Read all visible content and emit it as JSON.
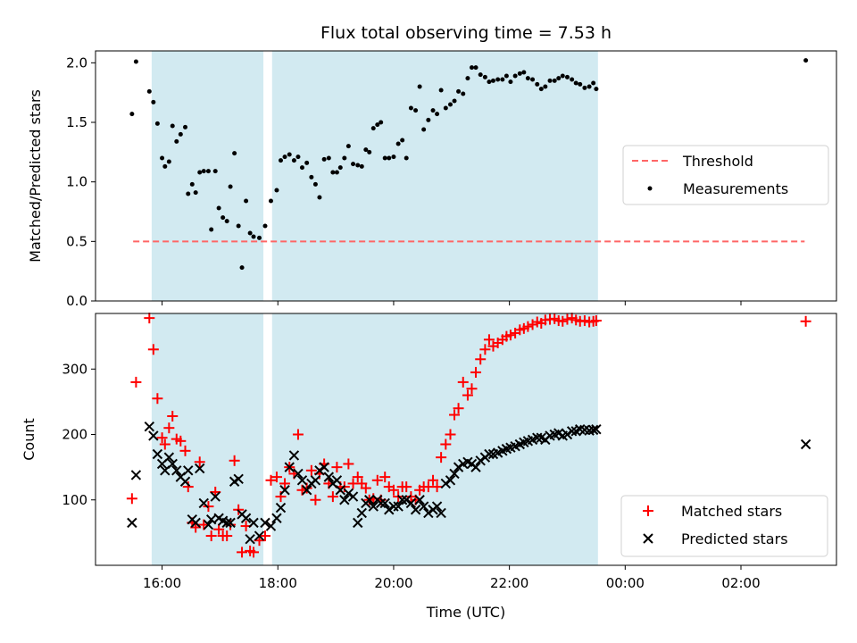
{
  "chart_data": {
    "title": "Flux total observing time = 7.53 h",
    "xlabel": "Time (UTC)",
    "x_ticks": [
      "16:00",
      "18:00",
      "20:00",
      "22:00",
      "00:00",
      "02:00"
    ],
    "x_range_hours": [
      14.85,
      27.65
    ],
    "shaded_spans_hours": [
      [
        15.82,
        17.75
      ],
      [
        17.9,
        23.53
      ]
    ],
    "shade_color": "#add8e6",
    "panels": [
      {
        "type": "scatter",
        "ylabel": "Matched/Predicted stars",
        "ylim": [
          0,
          2.1
        ],
        "y_ticks": [
          "0.0",
          "0.5",
          "1.0",
          "1.5",
          "2.0"
        ],
        "legend_position": "center-right",
        "threshold": {
          "name": "Threshold",
          "value": 0.5,
          "x_range": [
            15.5,
            27.1
          ],
          "color": "#ff6666",
          "style": "dashed"
        },
        "series": [
          {
            "name": "Measurements",
            "color": "#000000",
            "marker": "dot",
            "x": [
              15.48,
              15.55,
              15.78,
              15.85,
              15.92,
              16.0,
              16.05,
              16.12,
              16.18,
              16.25,
              16.32,
              16.4,
              16.45,
              16.52,
              16.58,
              16.65,
              16.72,
              16.8,
              16.85,
              16.92,
              16.98,
              17.05,
              17.12,
              17.18,
              17.25,
              17.32,
              17.38,
              17.45,
              17.52,
              17.58,
              17.68,
              17.78,
              17.88,
              17.98,
              18.05,
              18.12,
              18.2,
              18.28,
              18.35,
              18.42,
              18.5,
              18.58,
              18.65,
              18.72,
              18.8,
              18.88,
              18.95,
              19.02,
              19.08,
              19.15,
              19.22,
              19.3,
              19.38,
              19.45,
              19.52,
              19.58,
              19.65,
              19.72,
              19.78,
              19.85,
              19.92,
              20.0,
              20.08,
              20.15,
              20.22,
              20.3,
              20.38,
              20.45,
              20.52,
              20.6,
              20.68,
              20.75,
              20.82,
              20.9,
              20.98,
              21.05,
              21.12,
              21.2,
              21.28,
              21.35,
              21.42,
              21.5,
              21.58,
              21.65,
              21.72,
              21.8,
              21.88,
              21.95,
              22.02,
              22.1,
              22.18,
              22.25,
              22.32,
              22.4,
              22.48,
              22.55,
              22.62,
              22.7,
              22.78,
              22.85,
              22.92,
              23.0,
              23.08,
              23.15,
              23.22,
              23.3,
              23.38,
              23.45,
              23.5,
              27.12
            ],
            "y": [
              1.57,
              2.01,
              1.76,
              1.67,
              1.49,
              1.2,
              1.13,
              1.17,
              1.47,
              1.34,
              1.4,
              1.46,
              0.9,
              0.98,
              0.91,
              1.08,
              1.09,
              1.09,
              0.6,
              1.09,
              0.78,
              0.7,
              0.67,
              0.96,
              1.24,
              0.63,
              0.28,
              0.84,
              0.57,
              0.54,
              0.53,
              0.63,
              0.84,
              0.93,
              1.18,
              1.21,
              1.23,
              1.18,
              1.21,
              1.12,
              1.16,
              1.04,
              0.98,
              0.87,
              1.19,
              1.2,
              1.08,
              1.08,
              1.12,
              1.2,
              1.3,
              1.15,
              1.14,
              1.13,
              1.27,
              1.25,
              1.45,
              1.48,
              1.5,
              1.2,
              1.2,
              1.21,
              1.32,
              1.35,
              1.2,
              1.62,
              1.6,
              1.8,
              1.44,
              1.52,
              1.6,
              1.57,
              1.77,
              1.62,
              1.65,
              1.68,
              1.76,
              1.74,
              1.87,
              1.96,
              1.96,
              1.9,
              1.88,
              1.84,
              1.85,
              1.86,
              1.86,
              1.89,
              1.84,
              1.89,
              1.91,
              1.92,
              1.87,
              1.86,
              1.82,
              1.78,
              1.8,
              1.85,
              1.85,
              1.87,
              1.89,
              1.88,
              1.86,
              1.83,
              1.82,
              1.79,
              1.8,
              1.83,
              1.78,
              2.02
            ]
          }
        ]
      },
      {
        "type": "scatter",
        "ylabel": "Count",
        "ylim": [
          0,
          385
        ],
        "y_ticks": [
          "100",
          "200",
          "300"
        ],
        "legend_position": "lower-right",
        "series": [
          {
            "name": "Matched stars",
            "color": "#ff0000",
            "marker": "plus",
            "x": [
              15.48,
              15.55,
              15.78,
              15.85,
              15.92,
              16.0,
              16.05,
              16.12,
              16.18,
              16.25,
              16.32,
              16.4,
              16.45,
              16.52,
              16.58,
              16.65,
              16.72,
              16.8,
              16.85,
              16.92,
              16.98,
              17.05,
              17.12,
              17.18,
              17.25,
              17.32,
              17.38,
              17.45,
              17.52,
              17.58,
              17.68,
              17.78,
              17.88,
              17.98,
              18.05,
              18.12,
              18.2,
              18.28,
              18.35,
              18.42,
              18.5,
              18.58,
              18.65,
              18.72,
              18.8,
              18.88,
              18.95,
              19.02,
              19.08,
              19.15,
              19.22,
              19.3,
              19.38,
              19.45,
              19.52,
              19.58,
              19.65,
              19.72,
              19.78,
              19.85,
              19.92,
              20.0,
              20.08,
              20.15,
              20.22,
              20.3,
              20.38,
              20.45,
              20.52,
              20.6,
              20.68,
              20.75,
              20.82,
              20.9,
              20.98,
              21.05,
              21.12,
              21.2,
              21.28,
              21.35,
              21.42,
              21.5,
              21.58,
              21.65,
              21.72,
              21.8,
              21.88,
              21.95,
              22.02,
              22.1,
              22.18,
              22.25,
              22.32,
              22.4,
              22.48,
              22.55,
              22.62,
              22.7,
              22.78,
              22.85,
              22.92,
              23.0,
              23.08,
              23.15,
              23.22,
              23.3,
              23.38,
              23.45,
              23.5,
              27.12
            ],
            "y": [
              102,
              280,
              378,
              330,
              255,
              195,
              185,
              210,
              228,
              193,
              190,
              175,
              120,
              65,
              58,
              158,
              62,
              90,
              45,
              112,
              55,
              45,
              45,
              62,
              160,
              85,
              20,
              60,
              22,
              20,
              38,
              45,
              130,
              135,
              105,
              125,
              150,
              140,
              200,
              115,
              118,
              145,
              100,
              140,
              155,
              125,
              105,
              150,
              120,
              120,
              155,
              125,
              135,
              125,
              118,
              100,
              102,
              130,
              100,
              135,
              120,
              115,
              105,
              120,
              120,
              105,
              100,
              115,
              120,
              120,
              130,
              120,
              165,
              185,
              200,
              230,
              240,
              280,
              260,
              270,
              295,
              315,
              330,
              345,
              335,
              340,
              345,
              350,
              352,
              355,
              360,
              362,
              365,
              368,
              372,
              370,
              375,
              376,
              377,
              374,
              373,
              376,
              378,
              375,
              373,
              374,
              372,
              373,
              374,
              373
            ]
          },
          {
            "name": "Predicted stars",
            "color": "#000000",
            "marker": "x",
            "x": [
              15.48,
              15.55,
              15.78,
              15.85,
              15.92,
              16.0,
              16.05,
              16.12,
              16.18,
              16.25,
              16.32,
              16.4,
              16.45,
              16.52,
              16.58,
              16.65,
              16.72,
              16.8,
              16.85,
              16.92,
              16.98,
              17.05,
              17.12,
              17.18,
              17.25,
              17.32,
              17.38,
              17.45,
              17.52,
              17.58,
              17.68,
              17.78,
              17.88,
              17.98,
              18.05,
              18.12,
              18.2,
              18.28,
              18.35,
              18.42,
              18.5,
              18.58,
              18.65,
              18.72,
              18.8,
              18.88,
              18.95,
              19.02,
              19.08,
              19.15,
              19.22,
              19.3,
              19.38,
              19.45,
              19.52,
              19.58,
              19.65,
              19.72,
              19.78,
              19.85,
              19.92,
              20.0,
              20.08,
              20.15,
              20.22,
              20.3,
              20.38,
              20.45,
              20.52,
              20.6,
              20.68,
              20.75,
              20.82,
              20.9,
              20.98,
              21.05,
              21.12,
              21.2,
              21.28,
              21.35,
              21.42,
              21.5,
              21.58,
              21.65,
              21.72,
              21.8,
              21.88,
              21.95,
              22.02,
              22.1,
              22.18,
              22.25,
              22.32,
              22.4,
              22.48,
              22.55,
              22.62,
              22.7,
              22.78,
              22.85,
              22.92,
              23.0,
              23.08,
              23.15,
              23.22,
              23.3,
              23.38,
              23.45,
              23.5,
              27.12
            ],
            "y": [
              65,
              138,
              212,
              198,
              170,
              155,
              145,
              165,
              155,
              145,
              135,
              128,
              145,
              70,
              65,
              148,
              95,
              62,
              70,
              105,
              72,
              68,
              65,
              65,
              128,
              132,
              78,
              72,
              40,
              65,
              45,
              65,
              60,
              72,
              88,
              115,
              150,
              168,
              140,
              130,
              115,
              125,
              130,
              145,
              150,
              135,
              125,
              130,
              115,
              100,
              110,
              105,
              65,
              80,
              95,
              100,
              90,
              100,
              95,
              95,
              85,
              90,
              90,
              100,
              100,
              95,
              85,
              100,
              90,
              80,
              85,
              90,
              80,
              125,
              130,
              140,
              150,
              155,
              158,
              155,
              150,
              160,
              165,
              170,
              170,
              172,
              175,
              178,
              180,
              182,
              185,
              188,
              190,
              192,
              195,
              195,
              192,
              198,
              200,
              202,
              198,
              200,
              205,
              205,
              208,
              207,
              206,
              207,
              208,
              185
            ]
          }
        ]
      }
    ]
  }
}
